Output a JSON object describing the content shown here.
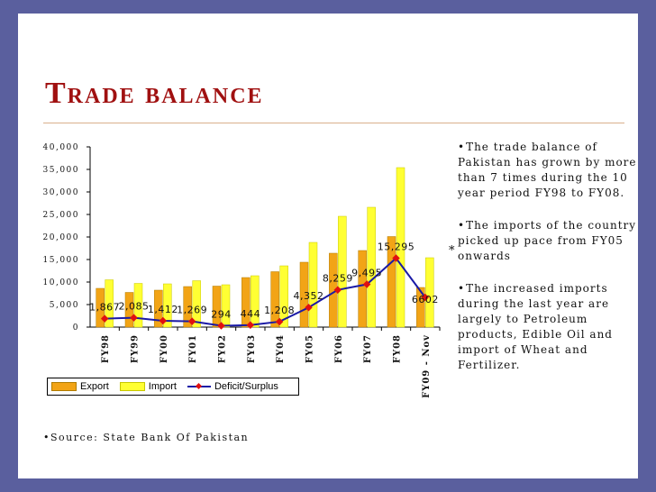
{
  "slide": {
    "title": "Trade balance",
    "source_text": "Source:  State Bank Of Pakistan",
    "stray_mark": "*",
    "bullets": [
      "The trade balance of Pakistan has grown by more than 7 times during the 10 year period FY98 to FY08.",
      "The imports of the country picked up pace from FY05 onwards",
      "The increased imports during the last year are largely to Petroleum products, Edible Oil and import of Wheat and Fertilizer."
    ]
  },
  "chart_data": {
    "type": "bar",
    "categories": [
      "FY98",
      "FY99",
      "FY00",
      "FY01",
      "FY02",
      "FY03",
      "FY04",
      "FY05",
      "FY06",
      "FY07",
      "FY08",
      "FY09 - Nov"
    ],
    "series": [
      {
        "name": "Export",
        "kind": "bar",
        "color": "#f2a416",
        "values": [
          8600,
          7700,
          8200,
          9000,
          9100,
          11000,
          12300,
          14400,
          16400,
          17000,
          20100,
          8800
        ]
      },
      {
        "name": "Import",
        "kind": "bar",
        "color": "#ffff33",
        "values": [
          10500,
          9700,
          9600,
          10300,
          9400,
          11400,
          13600,
          18800,
          24600,
          26600,
          35400,
          15400
        ]
      },
      {
        "name": "Deficit/Surplus",
        "kind": "line",
        "color": "#1a1aa6",
        "marker_color": "#e01010",
        "values": [
          1867,
          2085,
          1412,
          1269,
          294,
          444,
          1208,
          4352,
          8259,
          9495,
          15295,
          6602
        ]
      }
    ],
    "data_labels": [
      "1,867",
      "2,085",
      "1,412",
      "1,269",
      "294",
      "444",
      "1,208",
      "4,352",
      "8,259",
      "9,495",
      "15,295",
      "6602"
    ],
    "y_ticks": [
      "0",
      "5,000",
      "10,000",
      "15,000",
      "20,000",
      "25,000",
      "30,000",
      "35,000",
      "40,000"
    ],
    "ylim": [
      0,
      40000
    ],
    "legend": [
      "Export",
      "Import",
      "Deficit/Surplus"
    ],
    "legend_position": "bottom-left"
  }
}
